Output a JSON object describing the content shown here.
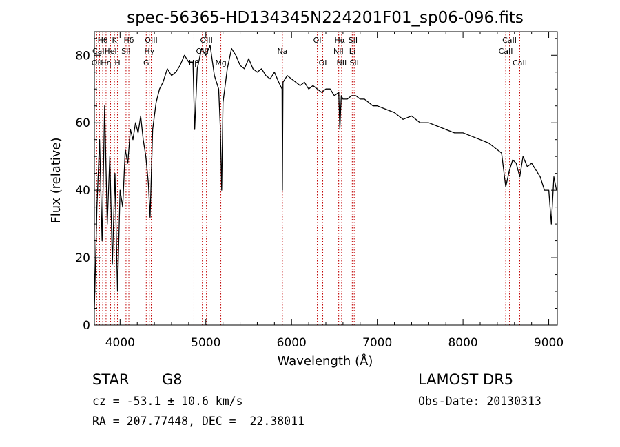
{
  "chart_data": {
    "type": "line",
    "title": "spec-56365-HD134345N224201F01_sp06-096.fits",
    "xlabel": "Wavelength (Å)",
    "ylabel": "Flux (relative)",
    "xlim": [
      3700,
      9100
    ],
    "ylim": [
      0,
      87
    ],
    "x_ticks": [
      4000,
      5000,
      6000,
      7000,
      8000,
      9000
    ],
    "y_ticks": [
      0,
      20,
      40,
      60,
      80
    ],
    "grid": false,
    "legend": "none",
    "series": [
      {
        "x": [
          3700,
          3730,
          3760,
          3790,
          3820,
          3850,
          3880,
          3910,
          3940,
          3970,
          4000,
          4030,
          4060,
          4090,
          4120,
          4150,
          4180,
          4210,
          4240,
          4270,
          4300,
          4330,
          4350,
          4380,
          4420,
          4460,
          4500,
          4550,
          4600,
          4650,
          4700,
          4750,
          4800,
          4850,
          4870,
          4900,
          4950,
          5000,
          5050,
          5100,
          5150,
          5170,
          5185,
          5200,
          5250,
          5300,
          5350,
          5400,
          5450,
          5500,
          5550,
          5600,
          5650,
          5700,
          5750,
          5800,
          5850,
          5889,
          5893,
          5900,
          5950,
          6000,
          6050,
          6100,
          6150,
          6200,
          6250,
          6300,
          6350,
          6400,
          6450,
          6500,
          6550,
          6563,
          6580,
          6600,
          6650,
          6700,
          6750,
          6800,
          6850,
          6900,
          6950,
          7000,
          7100,
          7200,
          7300,
          7400,
          7500,
          7600,
          7700,
          7800,
          7900,
          8000,
          8100,
          8200,
          8300,
          8400,
          8450,
          8498,
          8542,
          8580,
          8620,
          8662,
          8700,
          8750,
          8800,
          8850,
          8900,
          8950,
          9000,
          9030,
          9060,
          9090
        ],
        "values": [
          5,
          35,
          55,
          25,
          65,
          30,
          50,
          18,
          45,
          10,
          40,
          35,
          52,
          48,
          58,
          55,
          60,
          57,
          62,
          55,
          50,
          42,
          32,
          58,
          66,
          70,
          72,
          76,
          74,
          75,
          77,
          80,
          78,
          78,
          58,
          76,
          82,
          80,
          83,
          74,
          70,
          58,
          40,
          66,
          76,
          82,
          80,
          77,
          76,
          79,
          76,
          75,
          76,
          74,
          73,
          75,
          72,
          70,
          40,
          72,
          74,
          73,
          72,
          71,
          72,
          70,
          71,
          70,
          69,
          70,
          70,
          68,
          69,
          58,
          68,
          67,
          67,
          68,
          68,
          67,
          67,
          66,
          65,
          65,
          64,
          63,
          61,
          62,
          60,
          60,
          59,
          58,
          57,
          57,
          56,
          55,
          54,
          52,
          51,
          41,
          46,
          49,
          48,
          44,
          50,
          47,
          48,
          46,
          44,
          40,
          40,
          30,
          44,
          40
        ]
      }
    ],
    "line_markers": [
      {
        "label": "Hθ",
        "x": 3797,
        "row": 1
      },
      {
        "label": "OII",
        "x": 3727,
        "row": 3
      },
      {
        "label": "CaII",
        "x": 3760,
        "row": 2
      },
      {
        "label": "Hη",
        "x": 3836,
        "row": 3
      },
      {
        "label": "HeI",
        "x": 3889,
        "row": 2
      },
      {
        "label": "K",
        "x": 3934,
        "row": 1
      },
      {
        "label": "H",
        "x": 3969,
        "row": 3
      },
      {
        "label": "Hδ",
        "x": 4102,
        "row": 1
      },
      {
        "label": "SII",
        "x": 4069,
        "row": 2
      },
      {
        "label": "OIII",
        "x": 4363,
        "row": 1
      },
      {
        "label": "Hγ",
        "x": 4341,
        "row": 2
      },
      {
        "label": "G",
        "x": 4305,
        "row": 3
      },
      {
        "label": "OIII",
        "x": 5007,
        "row": 1
      },
      {
        "label": "OIII",
        "x": 4959,
        "row": 2
      },
      {
        "label": "Hβ",
        "x": 4861,
        "row": 3
      },
      {
        "label": "Mg",
        "x": 5175,
        "row": 3
      },
      {
        "label": "Na",
        "x": 5893,
        "row": 2
      },
      {
        "label": "OI",
        "x": 6300,
        "row": 1
      },
      {
        "label": "OI",
        "x": 6364,
        "row": 3
      },
      {
        "label": "Hα",
        "x": 6563,
        "row": 1
      },
      {
        "label": "NII",
        "x": 6548,
        "row": 2
      },
      {
        "label": "NII",
        "x": 6584,
        "row": 3
      },
      {
        "label": "SII",
        "x": 6717,
        "row": 1
      },
      {
        "label": "Li",
        "x": 6708,
        "row": 2
      },
      {
        "label": "SII",
        "x": 6731,
        "row": 3
      },
      {
        "label": "CaII",
        "x": 8542,
        "row": 1
      },
      {
        "label": "CaII",
        "x": 8498,
        "row": 2
      },
      {
        "label": "CaII",
        "x": 8662,
        "row": 3
      }
    ]
  },
  "info": {
    "object_class": "STAR",
    "subclass": "G8",
    "survey": "LAMOST DR5",
    "redshift": "cz = -53.1 ± 10.6 km/s",
    "obs_date": "Obs-Date: 20130313",
    "coords": "RA = 207.77448, DEC =  22.38011"
  }
}
